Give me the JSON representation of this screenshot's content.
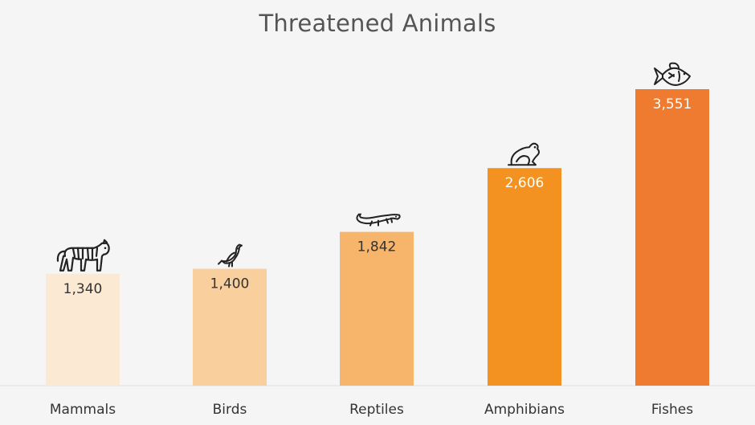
{
  "chart_data": {
    "type": "bar",
    "title": "Threatened Animals",
    "xlabel": "",
    "ylabel": "",
    "categories": [
      "Mammals",
      "Birds",
      "Reptiles",
      "Amphibians",
      "Fishes"
    ],
    "values": [
      1340,
      1400,
      1842,
      2606,
      3551
    ],
    "value_labels": [
      "1,340",
      "1,400",
      "1,842",
      "2,606",
      "3,551"
    ],
    "icons": [
      "tiger-icon",
      "bird-icon",
      "lizard-icon",
      "frog-icon",
      "fish-icon"
    ],
    "colors": [
      "#fbe9d3",
      "#f9cf9e",
      "#f6b56b",
      "#f39221",
      "#ee7b2f"
    ],
    "ylim": [
      0,
      3551
    ],
    "grid": false,
    "legend": "none"
  }
}
